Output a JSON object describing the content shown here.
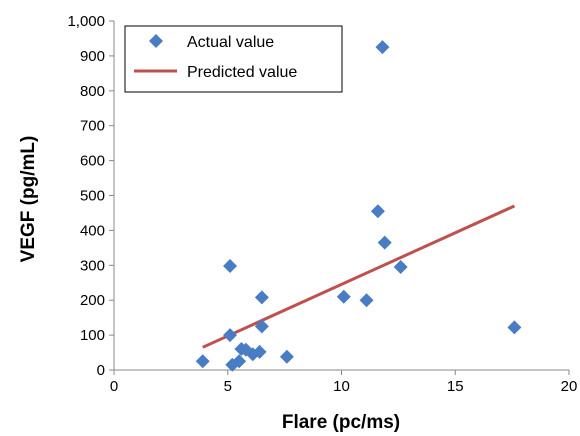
{
  "chart_data": {
    "type": "scatter",
    "title": "",
    "xlabel": "Flare (pc/ms)",
    "ylabel": "VEGF (pg/mL)",
    "xlim": [
      0,
      20
    ],
    "ylim": [
      0,
      1000
    ],
    "x_ticks": [
      0,
      5,
      10,
      15,
      20
    ],
    "y_ticks": [
      0,
      100,
      200,
      300,
      400,
      500,
      600,
      700,
      800,
      900,
      1000
    ],
    "x_tick_labels": [
      "0",
      "5",
      "10",
      "15",
      "20"
    ],
    "y_tick_labels": [
      "0",
      "100",
      "200",
      "300",
      "400",
      "500",
      "600",
      "700",
      "800",
      "900",
      "1,000"
    ],
    "grid": false,
    "legend_position": "top-left",
    "series": [
      {
        "name": "Actual value",
        "kind": "scatter",
        "marker": "diamond",
        "color": "#4a7cc4",
        "points": [
          {
            "x": 3.9,
            "y": 25
          },
          {
            "x": 5.1,
            "y": 100
          },
          {
            "x": 5.1,
            "y": 298
          },
          {
            "x": 5.2,
            "y": 15
          },
          {
            "x": 5.5,
            "y": 25
          },
          {
            "x": 5.6,
            "y": 60
          },
          {
            "x": 5.8,
            "y": 58
          },
          {
            "x": 6.1,
            "y": 45
          },
          {
            "x": 6.4,
            "y": 52
          },
          {
            "x": 6.5,
            "y": 125
          },
          {
            "x": 6.5,
            "y": 208
          },
          {
            "x": 7.6,
            "y": 38
          },
          {
            "x": 10.1,
            "y": 210
          },
          {
            "x": 11.1,
            "y": 200
          },
          {
            "x": 11.6,
            "y": 455
          },
          {
            "x": 11.8,
            "y": 925
          },
          {
            "x": 11.9,
            "y": 365
          },
          {
            "x": 12.6,
            "y": 295
          },
          {
            "x": 17.6,
            "y": 122
          }
        ]
      },
      {
        "name": "Predicted value",
        "kind": "line",
        "color": "#c0504d",
        "points": [
          {
            "x": 3.9,
            "y": 65
          },
          {
            "x": 17.6,
            "y": 470
          }
        ]
      }
    ]
  }
}
